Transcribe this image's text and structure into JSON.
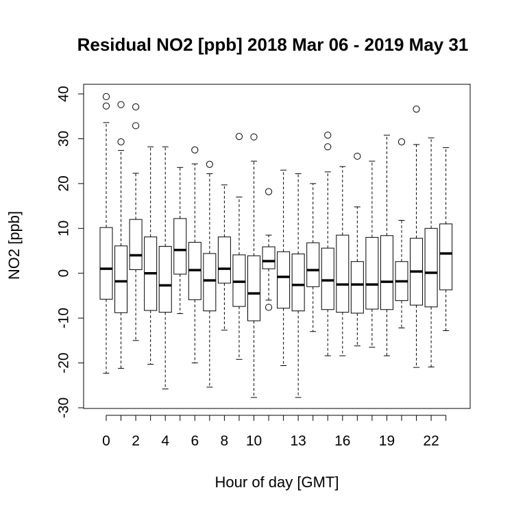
{
  "chart_data": {
    "type": "boxplot",
    "title": "Residual NO2 [ppb] 2018 Mar 06 - 2019 May 31",
    "xlabel": "Hour of day [GMT]",
    "ylabel": "NO2 [ppb]",
    "ylim": [
      -30,
      40
    ],
    "yticks": [
      -30,
      -20,
      -10,
      0,
      10,
      20,
      30,
      40
    ],
    "x_tick_labels": [
      "0",
      "2",
      "4",
      "6",
      "8",
      "10",
      "13",
      "16",
      "19",
      "22"
    ],
    "x_tick_hours": [
      0,
      2,
      4,
      6,
      8,
      10,
      13,
      16,
      19,
      22
    ],
    "grid": false,
    "categories": [
      0,
      1,
      2,
      3,
      4,
      5,
      6,
      7,
      8,
      9,
      10,
      11,
      12,
      13,
      14,
      15,
      16,
      17,
      18,
      19,
      20,
      21,
      22,
      23
    ],
    "boxes": [
      {
        "hour": 0,
        "whisker_low": -22.3,
        "q1": -5.8,
        "median": 1.0,
        "q3": 10.2,
        "whisker_high": 33.6,
        "outliers": [
          37.3,
          39.4
        ]
      },
      {
        "hour": 1,
        "whisker_low": -21.2,
        "q1": -8.8,
        "median": -1.8,
        "q3": 6.1,
        "whisker_high": 27.4,
        "outliers": [
          29.3,
          37.6
        ]
      },
      {
        "hour": 2,
        "whisker_low": -15.0,
        "q1": 0.8,
        "median": 4.0,
        "q3": 12.0,
        "whisker_high": 22.3,
        "outliers": [
          32.9,
          37.1
        ]
      },
      {
        "hour": 3,
        "whisker_low": -20.3,
        "q1": -8.3,
        "median": 0.0,
        "q3": 8.1,
        "whisker_high": 28.2,
        "outliers": []
      },
      {
        "hour": 4,
        "whisker_low": -25.8,
        "q1": -8.7,
        "median": -2.7,
        "q3": 6.0,
        "whisker_high": 28.2,
        "outliers": []
      },
      {
        "hour": 5,
        "whisker_low": -9.0,
        "q1": -0.2,
        "median": 5.2,
        "q3": 12.2,
        "whisker_high": 23.6,
        "outliers": []
      },
      {
        "hour": 6,
        "whisker_low": -20.0,
        "q1": -5.9,
        "median": 0.7,
        "q3": 6.9,
        "whisker_high": 24.4,
        "outliers": [
          27.5
        ]
      },
      {
        "hour": 7,
        "whisker_low": -25.4,
        "q1": -8.4,
        "median": -1.6,
        "q3": 4.4,
        "whisker_high": 22.2,
        "outliers": [
          24.3
        ]
      },
      {
        "hour": 8,
        "whisker_low": -12.7,
        "q1": -2.2,
        "median": 1.0,
        "q3": 8.1,
        "whisker_high": 19.7,
        "outliers": []
      },
      {
        "hour": 9,
        "whisker_low": -19.2,
        "q1": -7.4,
        "median": -1.9,
        "q3": 4.1,
        "whisker_high": 17.0,
        "outliers": [
          30.5
        ]
      },
      {
        "hour": 10,
        "whisker_low": -27.7,
        "q1": -10.6,
        "median": -4.5,
        "q3": 3.9,
        "whisker_high": 25.0,
        "outliers": [
          30.4
        ]
      },
      {
        "hour": 11,
        "whisker_low": -6.0,
        "q1": 1.0,
        "median": 2.7,
        "q3": 5.9,
        "whisker_high": 8.5,
        "outliers": [
          18.2,
          -7.6
        ]
      },
      {
        "hour": 12,
        "whisker_low": -20.6,
        "q1": -7.8,
        "median": -0.8,
        "q3": 4.8,
        "whisker_high": 23.0,
        "outliers": []
      },
      {
        "hour": 13,
        "whisker_low": -27.7,
        "q1": -8.4,
        "median": -2.6,
        "q3": 4.3,
        "whisker_high": 22.2,
        "outliers": []
      },
      {
        "hour": 14,
        "whisker_low": -13.0,
        "q1": -3.0,
        "median": 0.7,
        "q3": 6.8,
        "whisker_high": 20.0,
        "outliers": []
      },
      {
        "hour": 15,
        "whisker_low": -18.4,
        "q1": -8.1,
        "median": -1.6,
        "q3": 5.6,
        "whisker_high": 22.6,
        "outliers": [
          28.2,
          30.8
        ]
      },
      {
        "hour": 16,
        "whisker_low": -18.4,
        "q1": -8.7,
        "median": -2.5,
        "q3": 8.5,
        "whisker_high": 23.8,
        "outliers": []
      },
      {
        "hour": 17,
        "whisker_low": -16.2,
        "q1": -8.9,
        "median": -2.5,
        "q3": 2.6,
        "whisker_high": 14.8,
        "outliers": [
          26.1
        ]
      },
      {
        "hour": 18,
        "whisker_low": -16.5,
        "q1": -8.0,
        "median": -2.5,
        "q3": 8.0,
        "whisker_high": 25.0,
        "outliers": []
      },
      {
        "hour": 19,
        "whisker_low": -18.4,
        "q1": -8.1,
        "median": -1.9,
        "q3": 8.4,
        "whisker_high": 30.8,
        "outliers": []
      },
      {
        "hour": 20,
        "whisker_low": -12.2,
        "q1": -6.1,
        "median": -1.8,
        "q3": 2.6,
        "whisker_high": 11.8,
        "outliers": [
          29.3
        ]
      },
      {
        "hour": 21,
        "whisker_low": -21.0,
        "q1": -7.1,
        "median": 0.4,
        "q3": 7.8,
        "whisker_high": 28.7,
        "outliers": [
          36.6
        ]
      },
      {
        "hour": 22,
        "whisker_low": -20.9,
        "q1": -7.5,
        "median": 0.1,
        "q3": 10.0,
        "whisker_high": 30.2,
        "outliers": []
      },
      {
        "hour": 23,
        "whisker_low": -12.8,
        "q1": -3.7,
        "median": 4.4,
        "q3": 11.0,
        "whisker_high": 28.0,
        "outliers": []
      }
    ]
  }
}
